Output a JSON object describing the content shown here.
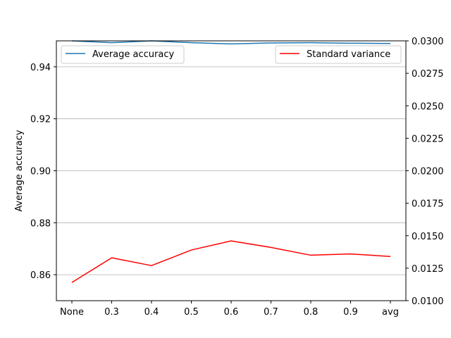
{
  "chart_data": {
    "type": "line",
    "categories": [
      "None",
      "0.3",
      "0.4",
      "0.5",
      "0.6",
      "0.7",
      "0.8",
      "0.9",
      "avg"
    ],
    "left_axis": {
      "label": "Average accuracy",
      "ylim": [
        0.85,
        0.95
      ],
      "ticks": [
        "0.86",
        "0.88",
        "0.90",
        "0.92",
        "0.94"
      ],
      "tick_values": [
        0.86,
        0.88,
        0.9,
        0.92,
        0.94
      ]
    },
    "right_axis": {
      "label": "",
      "ylim": [
        0.01,
        0.03
      ],
      "ticks": [
        "0.0100",
        "0.0125",
        "0.0150",
        "0.0175",
        "0.0200",
        "0.0225",
        "0.0250",
        "0.0275",
        "0.0300"
      ],
      "tick_values": [
        0.01,
        0.0125,
        0.015,
        0.0175,
        0.02,
        0.0225,
        0.025,
        0.0275,
        0.03
      ]
    },
    "series": [
      {
        "name": "Average accuracy",
        "axis": "left",
        "color": "#1f77b4",
        "values": [
          0.95,
          0.9493,
          0.95,
          0.9493,
          0.9488,
          0.9492,
          0.9493,
          0.9491,
          0.949
        ]
      },
      {
        "name": "Standard variance",
        "axis": "right",
        "color": "#ff0000",
        "values": [
          0.0114,
          0.0133,
          0.0127,
          0.0139,
          0.0146,
          0.0141,
          0.0135,
          0.0136,
          0.0134
        ]
      }
    ],
    "grid": "horizontal",
    "legend_left": "top-left",
    "legend_right": "top-right"
  }
}
